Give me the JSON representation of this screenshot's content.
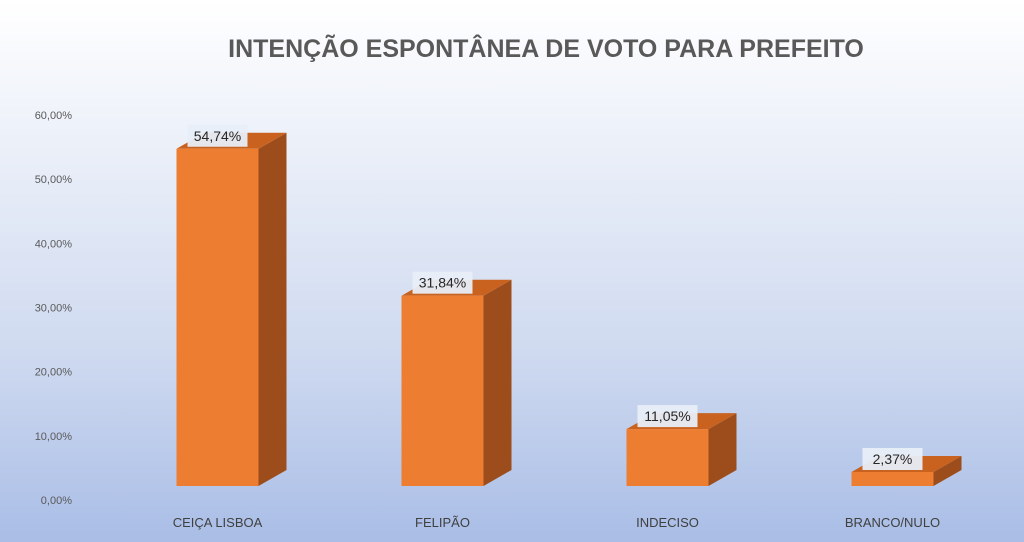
{
  "chart_data": {
    "type": "bar",
    "title": "INTENÇÃO ESPONTÂNEA DE VOTO PARA PREFEITO",
    "xlabel": "",
    "ylabel": "",
    "categories": [
      "CEIÇA LISBOA",
      "FELIPÃO",
      "INDECISO",
      "BRANCO/NULO"
    ],
    "values": [
      54.74,
      31.84,
      11.05,
      2.37
    ],
    "data_labels": [
      "54,74%",
      "31,84%",
      "11,05%",
      "2,37%"
    ],
    "y_ticks": [
      "0,00%",
      "10,00%",
      "20,00%",
      "30,00%",
      "40,00%",
      "50,00%",
      "60,00%"
    ],
    "ylim": [
      0,
      60
    ],
    "grid": false,
    "legend": "none",
    "bar_style": "3d-column",
    "colors": {
      "bar_front": "#ed7d31",
      "bar_side": "#9c4d1b",
      "bar_top": "#c9621f"
    }
  }
}
